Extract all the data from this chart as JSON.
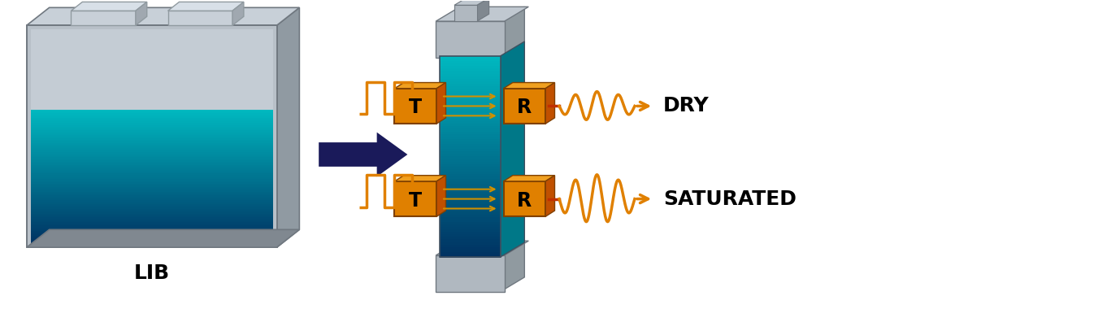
{
  "bg_color": "#ffffff",
  "lib_label": "LIB",
  "label_dry": "DRY",
  "label_sat": "SATURATED",
  "label_fontsize": 18,
  "pulse_color": "#e08000",
  "wave_line_color": "#c03000",
  "wave_color": "#e08000",
  "arrow_cell_color": "#d09000",
  "arrow_big_color": "#1a1a5a",
  "transducer_front": "#e08000",
  "transducer_top": "#f0a020",
  "transducer_side": "#c05000",
  "transducer_edge": "#804000"
}
